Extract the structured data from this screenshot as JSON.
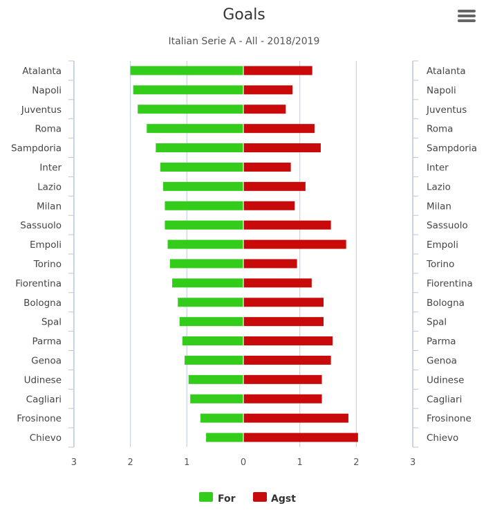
{
  "chart_data": {
    "type": "bar",
    "orientation": "horizontal",
    "title": "Goals",
    "subtitle": "Italian Serie A - All - 2018/2019",
    "categories": [
      "Atalanta",
      "Napoli",
      "Juventus",
      "Roma",
      "Sampdoria",
      "Inter",
      "Lazio",
      "Milan",
      "Sassuolo",
      "Empoli",
      "Torino",
      "Fiorentina",
      "Bologna",
      "Spal",
      "Parma",
      "Genoa",
      "Udinese",
      "Cagliari",
      "Frosinone",
      "Chievo"
    ],
    "series": [
      {
        "name": "For",
        "color": "#33cc1a",
        "direction": "left",
        "values": [
          2.0,
          1.95,
          1.87,
          1.71,
          1.55,
          1.47,
          1.42,
          1.39,
          1.39,
          1.34,
          1.3,
          1.26,
          1.16,
          1.13,
          1.08,
          1.04,
          0.97,
          0.94,
          0.76,
          0.66
        ]
      },
      {
        "name": "Agst",
        "color": "#c80a0a",
        "direction": "right",
        "values": [
          1.22,
          0.87,
          0.75,
          1.26,
          1.37,
          0.84,
          1.1,
          0.91,
          1.55,
          1.82,
          0.95,
          1.21,
          1.42,
          1.42,
          1.58,
          1.55,
          1.39,
          1.39,
          1.86,
          2.03
        ]
      }
    ],
    "x_ticks": [
      "3",
      "2",
      "1",
      "0",
      "1",
      "2",
      "3"
    ],
    "xlim": [
      -3,
      3
    ],
    "grid": true,
    "legend_position": "bottom-center"
  },
  "toolbar": {
    "menu_icon": "hamburger-icon"
  }
}
